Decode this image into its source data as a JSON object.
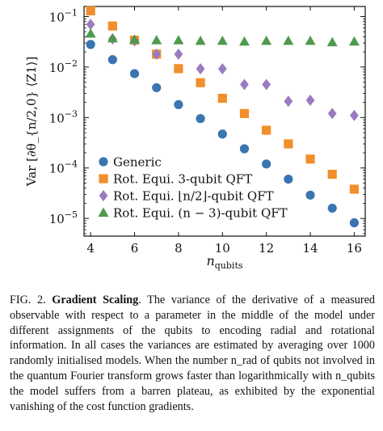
{
  "figure": {
    "chart_data": {
      "type": "scatter",
      "xlabel": "n_qubits",
      "ylabel": "Var [∂θ_{n/2,0} ⟨Z1⟩]",
      "xlim": [
        3.7,
        16.5
      ],
      "ylim_log10": [
        -5.35,
        -0.8
      ],
      "y_scale": "log",
      "x_ticks": [
        "4",
        "6",
        "8",
        "10",
        "12",
        "14",
        "16"
      ],
      "x_tick_values": [
        4,
        6,
        8,
        10,
        12,
        14,
        16
      ],
      "y_ticks": [
        "10^-1",
        "10^-2",
        "10^-3",
        "10^-4",
        "10^-5"
      ],
      "y_tick_exponents": [
        -1,
        -2,
        -3,
        -4,
        -5
      ],
      "grid": false,
      "legend_placement": "lower-left",
      "series": [
        {
          "name": "Generic",
          "marker": "circle",
          "color": "#3a75b0",
          "x": [
            4,
            5,
            6,
            7,
            8,
            9,
            10,
            11,
            12,
            13,
            14,
            15,
            16
          ],
          "y": [
            0.028,
            0.014,
            0.0074,
            0.0039,
            0.0018,
            0.00095,
            0.00047,
            0.00024,
            0.00012,
            6e-05,
            2.9e-05,
            1.6e-05,
            8.2e-06
          ]
        },
        {
          "name": "Rot. Equi. 3-qubit QFT",
          "marker": "square",
          "color": "#f28e2b",
          "x": [
            4,
            5,
            6,
            7,
            8,
            9,
            10,
            11,
            12,
            13,
            14,
            15,
            16
          ],
          "y": [
            0.13,
            0.065,
            0.034,
            0.018,
            0.0093,
            0.0049,
            0.0024,
            0.0012,
            0.00056,
            0.0003,
            0.00015,
            7.5e-05,
            3.8e-05
          ]
        },
        {
          "name": "Rot. Equi. ⌊n/2⌋-qubit QFT",
          "marker": "diamond",
          "color": "#9b7bbf",
          "x": [
            4,
            5,
            6,
            7,
            8,
            9,
            10,
            11,
            12,
            13,
            14,
            15,
            16
          ],
          "y": [
            0.07,
            0.036,
            0.033,
            0.018,
            0.018,
            0.0092,
            0.0092,
            0.0045,
            0.0045,
            0.0021,
            0.0022,
            0.0012,
            0.0011
          ]
        },
        {
          "name": "Rot. Equi. (n − 3)-qubit QFT",
          "marker": "triangle",
          "color": "#4e9a4e",
          "x": [
            4,
            5,
            6,
            7,
            8,
            9,
            10,
            11,
            12,
            13,
            14,
            15,
            16
          ],
          "y": [
            0.046,
            0.037,
            0.035,
            0.034,
            0.034,
            0.033,
            0.033,
            0.032,
            0.033,
            0.033,
            0.033,
            0.031,
            0.032
          ]
        }
      ]
    }
  },
  "caption": {
    "label": "FIG. 2.",
    "title": "Gradient Scaling",
    "text": ". The variance of the derivative of a measured observable with respect to a parameter in the middle of the model under different assignments of the qubits to encoding radial and rotational information. In all cases the variances are estimated by averaging over 1000 randomly initialised models. When the number n_rad of qubits not involved in the quantum Fourier transform grows faster than logarithmically with n_qubits the model suffers from a barren plateau, as exhibited by the exponential vanishing of the cost function gradients."
  }
}
